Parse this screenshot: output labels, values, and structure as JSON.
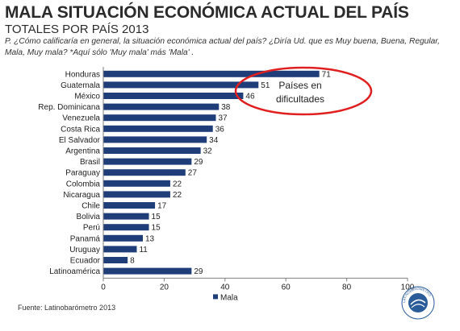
{
  "header": {
    "title": "MALA SITUACIÓN ECONÓMICA ACTUAL DEL PAÍS",
    "subtitle": "TOTALES POR PAÍS 2013",
    "question": "P. ¿Cómo  calificaría en general, la situación económica  actual del país? ¿Diría Ud. que es Muy buena, Buena, Regular, Mala, Muy mala? *Aquí sólo 'Muy mala' más 'Mala' ."
  },
  "footer": {
    "source": "Fuente: Latinobarómetro 2013"
  },
  "seal": {
    "text": "LATINOBARÓMETRO"
  },
  "colors": {
    "bar": "#1f3d78",
    "annotation_ellipse": "#e02020",
    "axis": "#7f7f7f"
  },
  "chart_data": {
    "type": "bar",
    "orientation": "horizontal",
    "categories": [
      "Honduras",
      "Guatemala",
      "México",
      "Rep. Dominicana",
      "Venezuela",
      "Costa Rica",
      "El Salvador",
      "Argentina",
      "Brasil",
      "Paraguay",
      "Colombia",
      "Nicaragua",
      "Chile",
      "Bolivia",
      "Perú",
      "Panamá",
      "Uruguay",
      "Ecuador",
      "Latinoamérica"
    ],
    "series": [
      {
        "name": "Mala",
        "values": [
          71,
          51,
          46,
          38,
          37,
          36,
          34,
          32,
          29,
          27,
          22,
          22,
          17,
          15,
          15,
          13,
          11,
          8,
          29
        ]
      }
    ],
    "xlim": [
      0,
      100
    ],
    "xticks": [
      0,
      20,
      40,
      60,
      80,
      100
    ],
    "grid": false,
    "legend": "bottom",
    "annotation": {
      "text_line1": "Países en",
      "text_line2": "dificultades"
    }
  }
}
